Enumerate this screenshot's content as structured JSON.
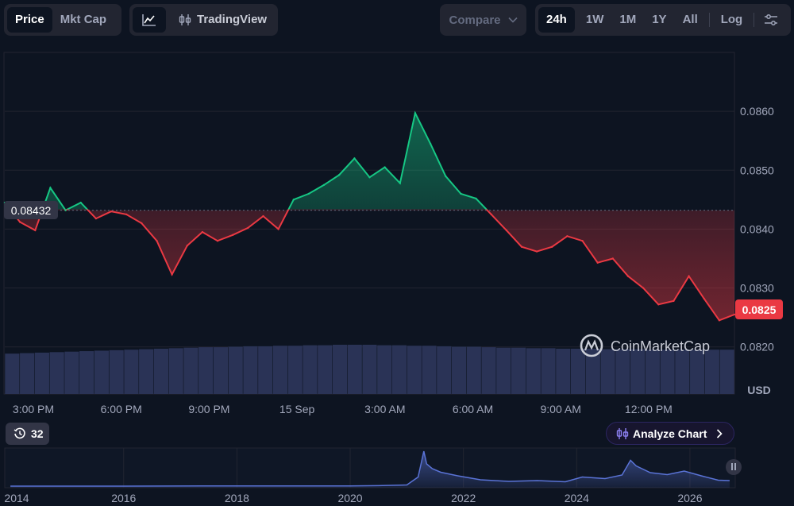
{
  "toolbar": {
    "type_tabs": [
      "Price",
      "Mkt Cap"
    ],
    "tradingview_label": "TradingView",
    "compare_label": "Compare",
    "ranges": [
      "24h",
      "1W",
      "1M",
      "1Y",
      "All"
    ],
    "log_label": "Log",
    "active_range": "24h",
    "active_type": "Price"
  },
  "chart_data": {
    "type": "area",
    "currency": "USD",
    "reference_price": "0.08432",
    "current_price": "0.0825",
    "ylim": [
      0.0812,
      0.087
    ],
    "y_ticks": [
      "0.0860",
      "0.0850",
      "0.0840",
      "0.0830",
      "0.0820"
    ],
    "x_ticks": [
      "3:00 PM",
      "6:00 PM",
      "9:00 PM",
      "15 Sep",
      "3:00 AM",
      "6:00 AM",
      "9:00 AM",
      "12:00 PM"
    ],
    "x_hours": [
      0,
      0.5,
      1,
      1.5,
      2,
      2.5,
      3,
      3.5,
      4,
      4.5,
      5,
      5.5,
      6,
      6.5,
      7,
      7.5,
      8,
      8.5,
      9,
      9.5,
      10,
      10.5,
      11,
      11.5,
      12,
      12.5,
      13,
      13.5,
      14,
      14.5,
      15,
      15.5,
      16,
      16.5,
      17,
      17.5,
      18,
      18.5,
      19,
      19.5,
      20,
      20.5,
      21,
      21.5,
      22,
      22.5,
      23,
      23.5,
      24
    ],
    "values": [
      0.08445,
      0.08412,
      0.08398,
      0.0847,
      0.08432,
      0.08445,
      0.08418,
      0.0843,
      0.08425,
      0.0841,
      0.0838,
      0.08323,
      0.08372,
      0.08395,
      0.0838,
      0.0839,
      0.08402,
      0.08422,
      0.084,
      0.0845,
      0.0846,
      0.08475,
      0.08492,
      0.0852,
      0.08488,
      0.08505,
      0.08478,
      0.08597,
      0.08545,
      0.0849,
      0.0846,
      0.08452,
      0.08425,
      0.08398,
      0.0837,
      0.08362,
      0.0837,
      0.08388,
      0.0838,
      0.08343,
      0.0835,
      0.0832,
      0.083,
      0.08272,
      0.08278,
      0.0832,
      0.08282,
      0.08245,
      0.08255
    ],
    "volume_relative": [
      0.82,
      0.83,
      0.84,
      0.85,
      0.86,
      0.87,
      0.88,
      0.89,
      0.9,
      0.91,
      0.92,
      0.93,
      0.94,
      0.95,
      0.95,
      0.96,
      0.97,
      0.97,
      0.98,
      0.98,
      0.99,
      0.99,
      1.0,
      1.0,
      1.0,
      0.99,
      0.99,
      0.98,
      0.98,
      0.97,
      0.96,
      0.96,
      0.95,
      0.94,
      0.94,
      0.93,
      0.93,
      0.92,
      0.92,
      0.92,
      0.91,
      0.91,
      0.91,
      0.9,
      0.9,
      0.9,
      0.9,
      0.9,
      0.9
    ],
    "watermark": "CoinMarketCap"
  },
  "overview": {
    "years": [
      "2014",
      "2016",
      "2018",
      "2020",
      "2022",
      "2024",
      "2026"
    ],
    "year_values": [
      2014,
      2016,
      2018,
      2020,
      2022,
      2024,
      2026
    ],
    "x_range": [
      2013.9,
      2026.8
    ],
    "t": [
      2014.0,
      2016.0,
      2018.0,
      2019.0,
      2020.0,
      2020.5,
      2021.0,
      2021.2,
      2021.3,
      2021.35,
      2021.45,
      2021.6,
      2021.9,
      2022.3,
      2022.8,
      2023.3,
      2023.8,
      2024.1,
      2024.5,
      2024.8,
      2024.95,
      2025.05,
      2025.3,
      2025.6,
      2025.9,
      2026.2,
      2026.5,
      2026.7
    ],
    "values": [
      0.0,
      0.01,
      0.06,
      0.04,
      0.05,
      0.12,
      0.3,
      2.3,
      8.8,
      5.6,
      4.4,
      3.5,
      2.6,
      1.6,
      1.2,
      1.4,
      1.1,
      2.3,
      1.9,
      2.8,
      6.5,
      5.1,
      3.4,
      2.9,
      3.8,
      2.6,
      1.5,
      1.4
    ]
  },
  "history_badge": "32",
  "analyze_label": "Analyze Chart",
  "colors": {
    "up": "#16c784",
    "down": "#ea3943",
    "background": "#0d1421",
    "panel": "#222531",
    "overview_line": "#5a73d6"
  }
}
